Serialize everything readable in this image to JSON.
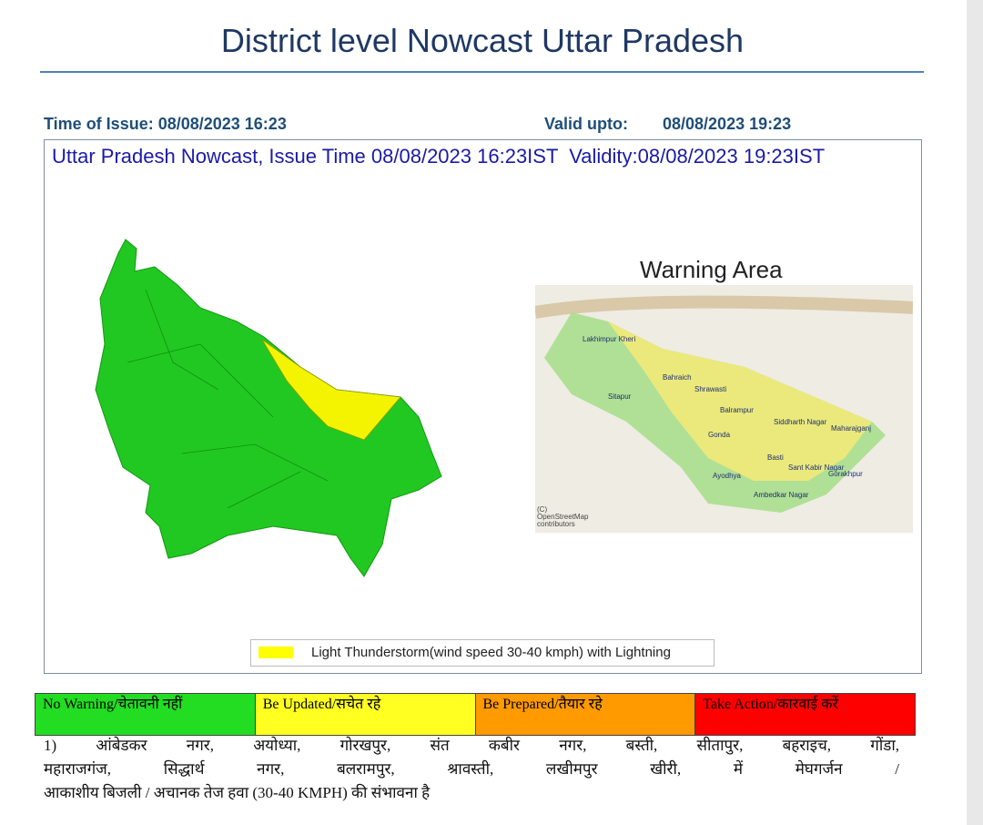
{
  "header": {
    "title": "District level Nowcast Uttar Pradesh",
    "issue_time": "Time of Issue: 08/08/2023 16:23",
    "valid_label": "Valid upto:",
    "valid_time": "08/08/2023 19:23"
  },
  "map": {
    "heading": "Uttar Pradesh Nowcast, Issue Time 08/08/2023 16:23IST  Validity:08/08/2023 19:23IST",
    "inset_title": "Warning Area",
    "places": [
      "Lakhimpur Kheri",
      "Bahraich",
      "Shrawasti",
      "Sitapur",
      "Balrampur",
      "Siddharth Nagar",
      "Maharajganj",
      "Gonda",
      "Basti",
      "Sant Kabir Nagar",
      "Gorakhpur",
      "Ayodhya",
      "Ambedkar Nagar"
    ],
    "credit": [
      "(C)",
      "OpenStreetMap",
      "contributors"
    ],
    "legend": "Light Thunderstorm(wind speed 30-40 kmph) with Lightning"
  },
  "levels": [
    "No Warning/चेतावनी नहीं",
    "Be Updated/सचेत रहे",
    "Be Prepared/तैयार रहे",
    "Take Action/कारवाई करें"
  ],
  "bulletin": [
    "1) आंबेडकर नगर, अयोध्या, गोरखपुर, संत कबीर नगर, बस्ती, सीतापुर, बहराइच, गोंडा,",
    "महाराजगंज, सिद्धार्थ नगर, बलरामपुर, श्रावस्ती, लखीमपुर खीरी, में मेघगर्जन /",
    "आकाशीय बिजली / अचानक तेज हवा (30-40 KMPH) की संभावना है"
  ]
}
